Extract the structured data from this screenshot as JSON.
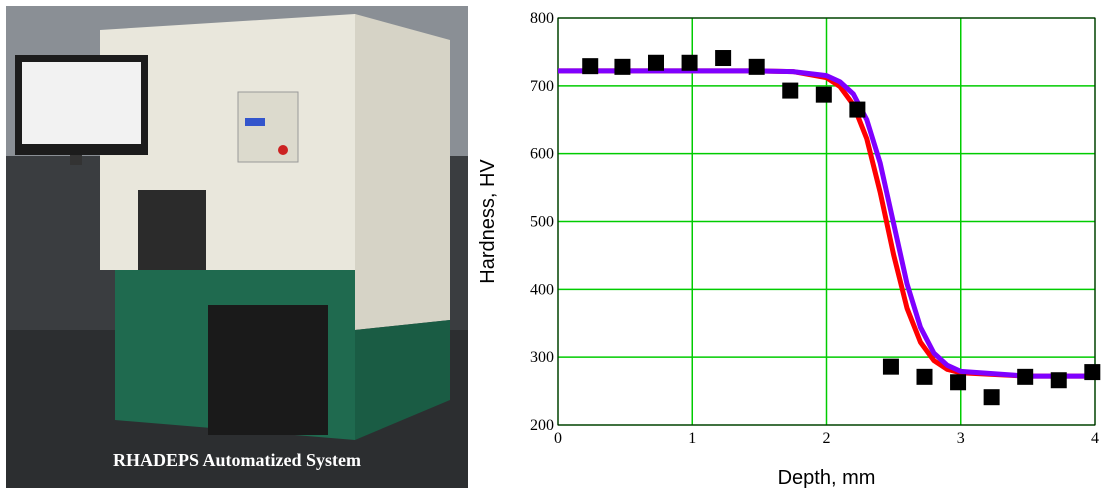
{
  "photo": {
    "caption": "RHADEPS Automatized System"
  },
  "chart_data": {
    "type": "scatter",
    "xlabel": "Depth, mm",
    "ylabel": "Hardness, HV",
    "xlim": [
      0,
      4
    ],
    "ylim": [
      200,
      800
    ],
    "xticks": [
      0,
      1,
      2,
      3,
      4
    ],
    "yticks": [
      200,
      300,
      400,
      500,
      600,
      700,
      800
    ],
    "grid": true,
    "grid_color": "#00cc00",
    "series": [
      {
        "type": "scatter",
        "color": "#000000",
        "marker": "square",
        "x": [
          0.24,
          0.48,
          0.73,
          0.98,
          1.23,
          1.48,
          1.73,
          1.98,
          2.23,
          2.48,
          2.73,
          2.98,
          3.23,
          3.48,
          3.73,
          3.98
        ],
        "values": [
          729,
          728,
          734,
          734,
          741,
          728,
          693,
          687,
          665,
          286,
          271,
          263,
          241,
          271,
          266,
          278
        ]
      },
      {
        "type": "line",
        "color": "#ff0000",
        "x": [
          0,
          0.5,
          1,
          1.5,
          1.75,
          2,
          2.1,
          2.2,
          2.3,
          2.4,
          2.5,
          2.6,
          2.7,
          2.8,
          2.9,
          3,
          3.5,
          4
        ],
        "values": [
          722,
          722,
          722,
          722,
          721,
          712,
          699,
          672,
          622,
          543,
          451,
          372,
          322,
          295,
          282,
          277,
          272,
          272
        ]
      },
      {
        "type": "line",
        "color": "#7f00ff",
        "x": [
          0,
          0.5,
          1,
          1.5,
          1.75,
          2,
          2.1,
          2.2,
          2.3,
          2.4,
          2.5,
          2.6,
          2.7,
          2.8,
          2.9,
          3,
          3.5,
          4
        ],
        "values": [
          722,
          722,
          722,
          722,
          721,
          715,
          706,
          688,
          650,
          586,
          497,
          408,
          344,
          306,
          288,
          279,
          272,
          272
        ]
      }
    ]
  }
}
